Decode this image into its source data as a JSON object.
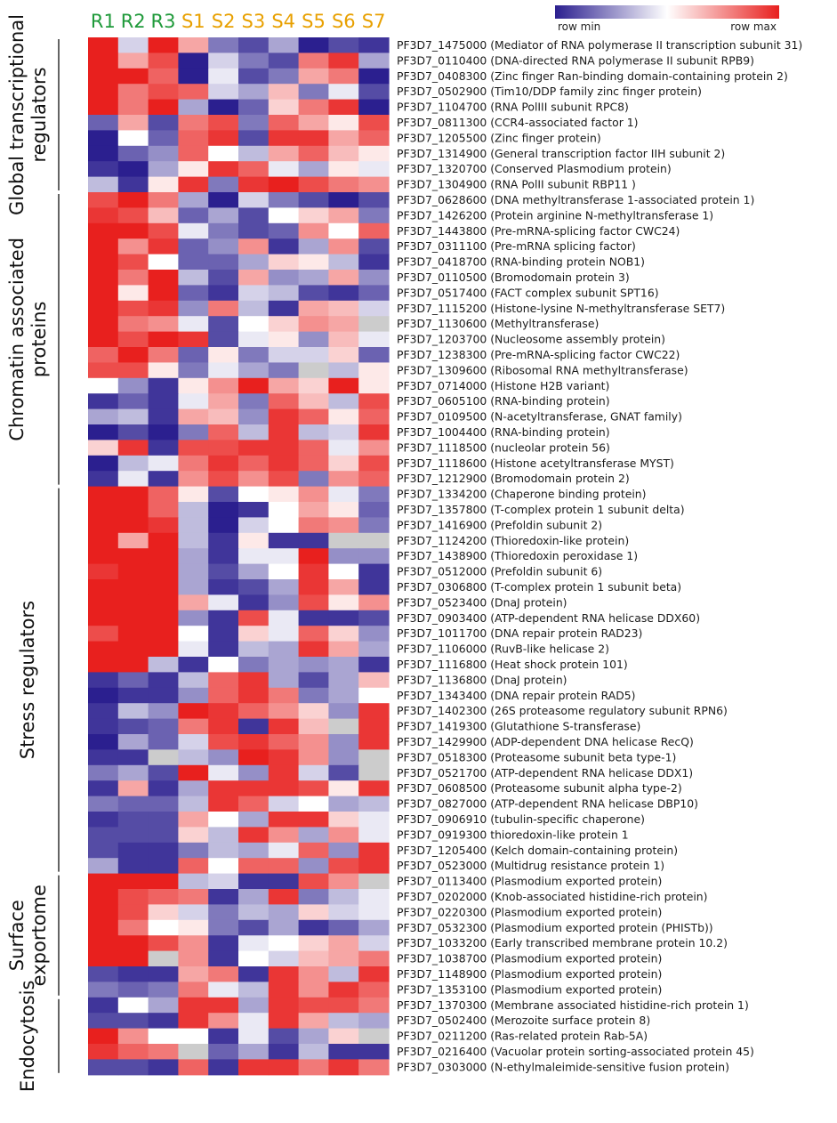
{
  "chart_data": {
    "type": "heatmap",
    "color_scale": {
      "min": "#2b1f8f",
      "mid": "#ffffff",
      "max": "#e8201e",
      "missing": "#cccccc"
    },
    "legend": {
      "min_label": "row min",
      "max_label": "row max"
    },
    "column_colors": {
      "R": "#1f9a3a",
      "S": "#e8a000"
    },
    "columns": [
      "R1",
      "R2",
      "R3",
      "S1",
      "S2",
      "S3",
      "S4",
      "S5",
      "S6",
      "S7"
    ],
    "groups": [
      {
        "label_lines": [
          "Global transcriptional",
          "regulators"
        ],
        "start": 0,
        "end": 9
      },
      {
        "label_lines": [
          "Chromatin associated",
          "proteins"
        ],
        "start": 10,
        "end": 28
      },
      {
        "label_lines": [
          "Stress regulators"
        ],
        "start": 29,
        "end": 53
      },
      {
        "label_lines": [
          "Surface",
          "exportome"
        ],
        "start": 54,
        "end": 61
      },
      {
        "label_lines": [
          "Endocytosis"
        ],
        "start": 62,
        "end": 66
      }
    ],
    "rows": [
      "PF3D7_1475000 (Mediator of RNA polymerase II transcription subunit 31)",
      "PF3D7_0110400 (DNA-directed RNA polymerase II subunit RPB9)",
      "PF3D7_0408300 (Zinc finger Ran-binding domain-containing protein 2)",
      "PF3D7_0502900 (Tim10/DDP family zinc finger protein)",
      "PF3D7_1104700 (RNA PolIII subunit RPC8)",
      "PF3D7_0811300 (CCR4-associated factor 1)",
      "PF3D7_1205500 (Zinc finger protein)",
      "PF3D7_1314900 (General transcription factor IIH subunit 2)",
      "PF3D7_1320700 (Conserved Plasmodium protein)",
      "PF3D7_1304900 (RNA PolII subunit RBP11 )",
      "PF3D7_0628600 (DNA methyltransferase 1-associated protein 1)",
      "PF3D7_1426200 (Protein arginine N-methyltransferase 1)",
      "PF3D7_1443800 (Pre-mRNA-splicing factor CWC24)",
      "PF3D7_0311100 (Pre-mRNA splicing factor)",
      "PF3D7_0418700 (RNA-binding protein NOB1)",
      "PF3D7_0110500 (Bromodomain protein 3)",
      "PF3D7_0517400 (FACT complex subunit SPT16)",
      "PF3D7_1115200 (Histone-lysine N-methyltransferase SET7)",
      "PF3D7_1130600 (Methyltransferase)",
      "PF3D7_1203700 (Nucleosome assembly protein)",
      "PF3D7_1238300 (Pre-mRNA-splicing factor CWC22)",
      "PF3D7_1309600 (Ribosomal RNA methyltransferase)",
      "PF3D7_0714000 (Histone H2B variant)",
      "PF3D7_0605100 (RNA-binding protein)",
      "PF3D7_0109500 (N-acetyltransferase, GNAT family)",
      "PF3D7_1004400 (RNA-binding protein)",
      "PF3D7_1118500 (nucleolar protein 56)",
      "PF3D7_1118600 (Histone acetyltransferase MYST)",
      "PF3D7_1212900 (Bromodomain protein 2)",
      "PF3D7_1334200 (Chaperone binding protein)",
      "PF3D7_1357800 (T-complex protein 1 subunit delta)",
      "PF3D7_1416900 (Prefoldin subunit 2)",
      "PF3D7_1124200 (Thioredoxin-like protein)",
      "PF3D7_1438900 (Thioredoxin peroxidase 1)",
      "PF3D7_0512000 (Prefoldin subunit 6)",
      "PF3D7_0306800 (T-complex protein 1 subunit beta)",
      "PF3D7_0523400 (DnaJ protein)",
      "PF3D7_0903400 (ATP-dependent RNA helicase DDX60)",
      "PF3D7_1011700 (DNA repair protein RAD23)",
      "PF3D7_1106000 (RuvB-like helicase 2)",
      "PF3D7_1116800 (Heat shock protein 101)",
      "PF3D7_1136800 (DnaJ protein)",
      "PF3D7_1343400 (DNA repair protein RAD5)",
      "PF3D7_1402300 (26S proteasome regulatory subunit RPN6)",
      "PF3D7_1419300 (Glutathione S-transferase)",
      "PF3D7_1429900 (ADP-dependent DNA helicase RecQ)",
      "PF3D7_0518300 (Proteasome subunit beta type-1)",
      "PF3D7_0521700 (ATP-dependent RNA helicase DDX1)",
      "PF3D7_0608500 (Proteasome subunit alpha type-2)",
      "PF3D7_0827000 (ATP-dependent RNA helicase DBP10)",
      "PF3D7_0906910 (tubulin-specific chaperone)",
      "PF3D7_0919300 thioredoxin-like protein 1",
      "PF3D7_1205400 (Kelch domain-containing protein)",
      "PF3D7_0523000 (Multidrug resistance protein 1)",
      "PF3D7_0113400 (Plasmodium exported protein)",
      "PF3D7_0202000 (Knob-associated histidine-rich protein)",
      "PF3D7_0220300 (Plasmodium exported protein)",
      "PF3D7_0532300 (Plasmodium exported protein (PHISTb))",
      "PF3D7_1033200 (Early transcribed membrane protein 10.2)",
      "PF3D7_1038700 (Plasmodium exported protein)",
      "PF3D7_1148900 (Plasmodium exported protein)",
      "PF3D7_1353100 (Plasmodium exported protein)",
      "PF3D7_1370300 (Membrane associated histidine-rich protein 1)",
      "PF3D7_0502400 (Merozoite surface protein 8)",
      "PF3D7_0211200 (Ras-related protein Rab-5A)",
      "PF3D7_0216400 (Vacuolar protein sorting-associated protein 45)",
      "PF3D7_0303000 (N-ethylmaleimide-sensitive fusion protein)"
    ],
    "values": [
      [
        1,
        0.4,
        1,
        0.7,
        0.2,
        0.1,
        0.3,
        0,
        0.1,
        0.05
      ],
      [
        1,
        0.7,
        0.9,
        0,
        0.4,
        0.2,
        0.1,
        0.8,
        0.95,
        0.3
      ],
      [
        1,
        1,
        0.85,
        0,
        0.45,
        0.1,
        0.2,
        0.7,
        0.8,
        0
      ],
      [
        1,
        0.8,
        0.9,
        0.85,
        0.4,
        0.3,
        0.65,
        0.2,
        0.45,
        0.1
      ],
      [
        1,
        0.8,
        1,
        0.3,
        0,
        0.15,
        0.6,
        0.8,
        0.95,
        0
      ],
      [
        0.15,
        0.7,
        0.1,
        0.8,
        0.9,
        0.2,
        0.85,
        0.7,
        0.55,
        0.9
      ],
      [
        0,
        0.5,
        0.15,
        0.85,
        0.95,
        0.1,
        0.95,
        0.95,
        0.7,
        0.85
      ],
      [
        0,
        0.15,
        0.25,
        0.85,
        0.5,
        0.35,
        0.7,
        0.85,
        0.65,
        0.55
      ],
      [
        0.05,
        0,
        0.3,
        0.55,
        0.95,
        0.85,
        0.45,
        0.3,
        0.55,
        0.45
      ],
      [
        0.35,
        0.05,
        0.55,
        0.95,
        0.2,
        0.95,
        1,
        0.9,
        0.8,
        0.75
      ],
      [
        0.9,
        1,
        0.8,
        0.3,
        0,
        0.4,
        0.2,
        0.1,
        0,
        0.1
      ],
      [
        0.95,
        0.9,
        0.65,
        0.15,
        0.3,
        0.1,
        0.5,
        0.6,
        0.7,
        0.2
      ],
      [
        1,
        1,
        0.9,
        0.45,
        0.2,
        0.1,
        0.15,
        0.75,
        0.5,
        0.85
      ],
      [
        1,
        0.75,
        0.95,
        0.15,
        0.25,
        0.75,
        0.05,
        0.3,
        0.75,
        0.1
      ],
      [
        1,
        0.9,
        0.5,
        0.15,
        0.15,
        0.3,
        0.6,
        0.55,
        0.35,
        0.05
      ],
      [
        1,
        0.8,
        1,
        0.35,
        0.1,
        0.7,
        0.25,
        0.3,
        0.7,
        0.25
      ],
      [
        1,
        0.55,
        1,
        0.15,
        0.05,
        0.4,
        0.35,
        0.1,
        0.05,
        0.15
      ],
      [
        1,
        0.9,
        0.95,
        0.25,
        0.8,
        0.35,
        0.05,
        0.7,
        0.65,
        0.4
      ],
      [
        1,
        0.8,
        0.75,
        0.45,
        0.1,
        0.5,
        0.6,
        0.75,
        0.7,
        -1
      ],
      [
        1,
        0.9,
        1,
        0.95,
        0.1,
        0.45,
        0.55,
        0.25,
        0.65,
        0.45
      ],
      [
        0.85,
        1,
        0.8,
        0.15,
        0.55,
        0.2,
        0.4,
        0.4,
        0.6,
        0.15
      ],
      [
        0.9,
        0.9,
        0.55,
        0.2,
        0.45,
        0.3,
        0.2,
        -1,
        0.35,
        0.55
      ],
      [
        0.5,
        0.25,
        0.05,
        0.55,
        0.75,
        1,
        0.7,
        0.6,
        1,
        0.55
      ],
      [
        0.05,
        0.15,
        0.05,
        0.45,
        0.7,
        0.2,
        0.85,
        0.65,
        0.35,
        0.9
      ],
      [
        0.3,
        0.35,
        0.05,
        0.7,
        0.65,
        0.25,
        0.95,
        0.85,
        0.55,
        0.85
      ],
      [
        0,
        0.1,
        0,
        0.2,
        0.85,
        0.35,
        0.95,
        0.35,
        0.4,
        0.95
      ],
      [
        0.6,
        0.95,
        0.05,
        0.9,
        0.9,
        0.95,
        0.95,
        0.85,
        0.45,
        0.75
      ],
      [
        0,
        0.35,
        0.45,
        0.8,
        0.95,
        0.85,
        0.95,
        0.85,
        0.6,
        0.9
      ],
      [
        0.05,
        0.45,
        0.05,
        0.75,
        0.9,
        0.75,
        0.9,
        0.2,
        0.75,
        0.85
      ],
      [
        1,
        1,
        0.85,
        0.55,
        0.1,
        0.5,
        0.55,
        0.75,
        0.45,
        0.2
      ],
      [
        1,
        1,
        0.85,
        0.35,
        0,
        0.05,
        0.5,
        0.7,
        0.55,
        0.15
      ],
      [
        1,
        1,
        0.95,
        0.35,
        0,
        0.4,
        0.5,
        0.8,
        0.75,
        0.2
      ],
      [
        1,
        0.7,
        1,
        0.35,
        0.05,
        0.55,
        0.05,
        0.05,
        -1,
        -1
      ],
      [
        1,
        1,
        1,
        0.3,
        0.05,
        0.45,
        0.45,
        1,
        0.25,
        0.25
      ],
      [
        0.95,
        1,
        1,
        0.3,
        0.1,
        0.3,
        0.5,
        0.95,
        0.5,
        0.05
      ],
      [
        1,
        1,
        1,
        0.3,
        0.05,
        0.1,
        0.3,
        0.95,
        0.7,
        0.05
      ],
      [
        1,
        1,
        1,
        0.7,
        0.45,
        0.05,
        0.25,
        0.9,
        0.55,
        0.75
      ],
      [
        1,
        1,
        1,
        0.25,
        0.05,
        0.9,
        0.45,
        0.05,
        0.05,
        0.1
      ],
      [
        0.9,
        1,
        1,
        0.5,
        0.05,
        0.6,
        0.45,
        0.85,
        0.6,
        0.25
      ],
      [
        1,
        1,
        1,
        0.45,
        0.05,
        0.35,
        0.3,
        0.95,
        0.7,
        0.3
      ],
      [
        1,
        1,
        0.35,
        0.05,
        0.5,
        0.2,
        0.3,
        0.25,
        0.3,
        0.05
      ],
      [
        0.05,
        0.15,
        0.05,
        0.35,
        0.85,
        0.95,
        0.3,
        0.1,
        0.3,
        0.65
      ],
      [
        0,
        0.05,
        0.05,
        0.25,
        0.85,
        0.95,
        0.8,
        0.2,
        0.3,
        0.5
      ],
      [
        0.05,
        0.35,
        0.25,
        1,
        0.95,
        0.85,
        0.75,
        0.6,
        0.25,
        0.95
      ],
      [
        0.05,
        0.1,
        0.15,
        0.8,
        0.95,
        0.05,
        0.95,
        0.65,
        -1,
        0.95
      ],
      [
        0,
        0.3,
        0.15,
        0.4,
        0.9,
        0.95,
        0.85,
        0.75,
        0.25,
        0.95
      ],
      [
        0.05,
        0.05,
        -1,
        0.35,
        0.25,
        1,
        0.95,
        0.75,
        0.25,
        -1
      ],
      [
        0.2,
        0.3,
        0.1,
        1,
        0.45,
        0.25,
        0.95,
        0.4,
        0.1,
        -1
      ],
      [
        0.05,
        0.7,
        0.05,
        0.3,
        0.95,
        0.95,
        0.95,
        0.9,
        0.55,
        0.95
      ],
      [
        0.2,
        0.15,
        0.15,
        0.35,
        0.95,
        0.85,
        0.4,
        0.5,
        0.3,
        0.35
      ],
      [
        0.05,
        0.1,
        0.1,
        0.7,
        0.5,
        0.3,
        0.95,
        0.95,
        0.6,
        0.45
      ],
      [
        0.1,
        0.1,
        0.1,
        0.6,
        0.35,
        0.95,
        0.75,
        0.3,
        0.75,
        0.45
      ],
      [
        0.1,
        0.05,
        0.05,
        0.2,
        0.35,
        0.3,
        0.45,
        0.85,
        0.25,
        0.95
      ],
      [
        0.3,
        0.05,
        0.05,
        0.85,
        0.5,
        0.85,
        0.85,
        0.25,
        0.9,
        0.95
      ],
      [
        1,
        1,
        1,
        0.35,
        0.4,
        0.05,
        0.05,
        0.9,
        0.75,
        -1
      ],
      [
        1,
        0.9,
        0.85,
        0.8,
        0.05,
        0.3,
        0.95,
        0.2,
        0.35,
        0.45
      ],
      [
        1,
        0.9,
        0.6,
        0.4,
        0.2,
        0.35,
        0.3,
        0.6,
        0.4,
        0.45
      ],
      [
        1,
        0.8,
        0.5,
        0.55,
        0.2,
        0.1,
        0.3,
        0.05,
        0.15,
        0.3
      ],
      [
        1,
        1,
        0.9,
        0.75,
        0.05,
        0.45,
        0.5,
        0.6,
        0.7,
        0.4
      ],
      [
        1,
        1,
        -1,
        0.75,
        0.05,
        0.5,
        0.4,
        0.65,
        0.7,
        0.8
      ],
      [
        0.1,
        0.05,
        0.05,
        0.7,
        0.8,
        0.05,
        0.95,
        0.75,
        0.35,
        0.95
      ],
      [
        0.2,
        0.15,
        0.2,
        0.8,
        0.45,
        0.35,
        0.95,
        0.75,
        0.95,
        0.85
      ],
      [
        0.05,
        0.5,
        0.3,
        0.95,
        0.95,
        0.3,
        0.95,
        0.9,
        0.9,
        0.8
      ],
      [
        0.1,
        0.1,
        0.05,
        0.95,
        0.75,
        0.45,
        0.95,
        0.7,
        0.35,
        0.3
      ],
      [
        1,
        0.75,
        0.5,
        0.5,
        0.05,
        0.45,
        0.1,
        0.3,
        0.6,
        -1
      ],
      [
        0.95,
        0.85,
        0.8,
        -1,
        0.15,
        0.3,
        0.05,
        0.35,
        0.05,
        0.05
      ],
      [
        0.1,
        0.1,
        0.05,
        0.85,
        0.05,
        0.95,
        0.95,
        0.8,
        0.95,
        0.8
      ]
    ]
  }
}
